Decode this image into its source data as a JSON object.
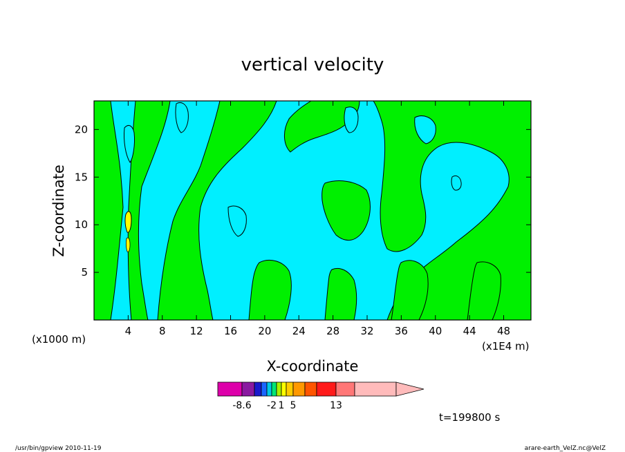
{
  "chart_data": {
    "type": "heatmap",
    "title": "vertical velocity",
    "xlabel": "X-coordinate",
    "ylabel": "Z-coordinate",
    "x_unit": "(x1E4 m)",
    "y_unit": "(x1000 m)",
    "xlim": [
      0,
      51.2
    ],
    "ylim": [
      0,
      23
    ],
    "x_ticks": [
      4,
      8,
      12,
      16,
      20,
      24,
      28,
      32,
      36,
      40,
      44,
      48
    ],
    "x_tick_labels": [
      "4",
      "8",
      "12",
      "16",
      "20",
      "24",
      "28",
      "32",
      "36",
      "40",
      "44",
      "48"
    ],
    "y_ticks": [
      5,
      10,
      15,
      20
    ],
    "y_tick_labels": [
      "5",
      "10",
      "15",
      "20"
    ],
    "time_label": "t=199800 s",
    "colorbar": {
      "levels_labeled": [
        "-8.6",
        "-2",
        "1",
        "5",
        "13"
      ],
      "colors": [
        "#dd00aa",
        "#8a1aa0",
        "#1a1acc",
        "#1a66ff",
        "#00c8e6",
        "#00e676",
        "#a6f000",
        "#ffff00",
        "#ffcc00",
        "#ff9900",
        "#ff5500",
        "#ff1a1a",
        "#ff7777",
        "#ffbbbb"
      ],
      "extend": "max"
    },
    "regions": {
      "negative_color": "#00efff",
      "positive_color": "#00f000",
      "strong_color": "#ffff00"
    }
  },
  "footer": {
    "left": "/usr/bin/gpview   2010-11-19",
    "right": "arare-earth_VelZ.nc@VelZ"
  }
}
